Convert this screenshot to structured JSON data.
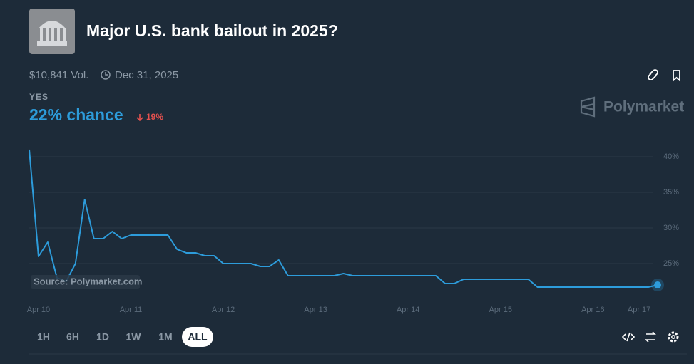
{
  "header": {
    "title": "Major U.S. bank bailout in 2025?",
    "volume": "$10,841 Vol.",
    "end_date": "Dec 31, 2025",
    "outcome": "YES",
    "chance": "22% chance",
    "change": "19%",
    "brand": "Polymarket"
  },
  "controls": {
    "ranges": [
      "1H",
      "6H",
      "1D",
      "1W",
      "1M",
      "ALL"
    ]
  },
  "chart_data": {
    "type": "line",
    "annotation": "Source: Polymarket.com",
    "categories": [
      null,
      "Apr 10",
      null,
      null,
      null,
      null,
      null,
      null,
      null,
      null,
      null,
      "Apr 11",
      null,
      null,
      null,
      null,
      null,
      null,
      null,
      null,
      null,
      "Apr 12",
      null,
      null,
      null,
      null,
      null,
      null,
      null,
      null,
      null,
      "Apr 13",
      null,
      null,
      null,
      null,
      null,
      null,
      null,
      null,
      null,
      "Apr 14",
      null,
      null,
      null,
      null,
      null,
      null,
      null,
      null,
      null,
      "Apr 15",
      null,
      null,
      null,
      null,
      null,
      null,
      null,
      null,
      null,
      "Apr 16",
      null,
      null,
      null,
      null,
      "Apr 17",
      null,
      null
    ],
    "series": [
      {
        "name": "YES",
        "color": "#2d9cdb",
        "values": [
          41,
          26,
          28,
          23,
          22.5,
          25,
          34,
          28.5,
          28.5,
          29.5,
          28.5,
          29,
          29,
          29,
          29,
          29,
          27,
          26.5,
          26.5,
          26.1,
          26.1,
          25,
          25,
          25,
          25,
          24.6,
          24.6,
          25.5,
          23.3,
          23.3,
          23.3,
          23.3,
          23.3,
          23.3,
          23.6,
          23.3,
          23.3,
          23.3,
          23.3,
          23.3,
          23.3,
          23.3,
          23.3,
          23.3,
          23.3,
          22.2,
          22.2,
          22.8,
          22.8,
          22.8,
          22.8,
          22.8,
          22.8,
          22.8,
          22.8,
          21.7,
          21.7,
          21.7,
          21.7,
          21.7,
          21.7,
          21.7,
          21.7,
          21.7,
          21.7,
          21.7,
          21.7,
          21.7,
          22
        ]
      }
    ],
    "ylim": [
      20,
      42
    ],
    "yticks": [
      {
        "value": 25,
        "label": "25%"
      },
      {
        "value": 30,
        "label": "30%"
      },
      {
        "value": 35,
        "label": "35%"
      },
      {
        "value": 40,
        "label": "40%"
      }
    ],
    "grid": true
  }
}
